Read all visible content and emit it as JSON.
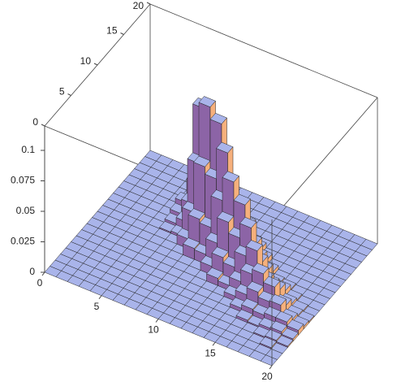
{
  "chart_data": {
    "type": "bar3d",
    "xlim": [
      0,
      20
    ],
    "ylim": [
      0,
      20
    ],
    "zlim": [
      0,
      0.12
    ],
    "xticks": [
      0,
      5,
      10,
      15,
      20
    ],
    "yticks": [
      0,
      5,
      10,
      15,
      20
    ],
    "zticks": [
      0,
      0.025,
      0.05,
      0.075,
      0.1
    ],
    "colors": {
      "top": "#a9b4ea",
      "side_y": "#8c64a6",
      "side_x": "#f6b07c"
    },
    "z": [
      [
        0,
        0,
        0,
        0,
        0,
        0,
        0,
        0,
        0,
        0,
        0,
        0,
        0,
        0,
        0,
        0,
        0,
        0,
        0,
        0
      ],
      [
        0,
        0,
        0,
        0,
        0,
        0,
        0,
        0,
        0,
        0,
        0,
        0,
        0,
        0,
        0,
        0,
        0,
        0,
        0,
        0
      ],
      [
        0,
        0,
        0,
        0,
        0,
        0,
        0,
        0,
        0,
        0,
        0,
        0,
        0,
        0,
        0,
        0,
        0,
        0,
        0,
        0
      ],
      [
        0,
        0,
        0,
        0,
        0,
        0,
        0,
        0,
        0,
        0,
        0,
        0,
        0,
        0,
        0,
        0,
        0,
        0,
        0,
        0
      ],
      [
        0,
        0,
        0,
        0,
        0,
        0,
        0,
        0,
        0,
        0,
        0,
        0,
        0,
        0,
        0,
        0,
        0,
        0,
        0,
        0
      ],
      [
        0,
        0,
        0,
        0,
        0,
        0,
        0,
        0,
        0,
        0,
        0,
        0.001,
        0.003,
        0.006,
        0.01,
        0.006,
        0.003,
        0.001,
        0,
        0
      ],
      [
        0,
        0,
        0,
        0,
        0,
        0,
        0,
        0,
        0,
        0,
        0,
        0.002,
        0.008,
        0.018,
        0.03,
        0.018,
        0.008,
        0.002,
        0,
        0
      ],
      [
        0,
        0,
        0,
        0,
        0,
        0,
        0,
        0,
        0,
        0,
        0.008,
        0.025,
        0.06,
        0.1,
        0.06,
        0.025,
        0.008,
        0,
        0,
        0
      ],
      [
        0,
        0,
        0,
        0,
        0,
        0,
        0,
        0,
        0,
        0.009,
        0.028,
        0.066,
        0.11,
        0.066,
        0.028,
        0.009,
        0,
        0,
        0,
        0
      ],
      [
        0,
        0,
        0,
        0,
        0,
        0,
        0,
        0,
        0,
        0.008,
        0.025,
        0.06,
        0.1,
        0.06,
        0.025,
        0.008,
        0,
        0,
        0,
        0
      ],
      [
        0,
        0,
        0,
        0,
        0,
        0,
        0,
        0,
        0.007,
        0.021,
        0.051,
        0.085,
        0.051,
        0.021,
        0.007,
        0,
        0,
        0,
        0,
        0
      ],
      [
        0,
        0,
        0,
        0,
        0,
        0,
        0,
        0.006,
        0.018,
        0.042,
        0.07,
        0.042,
        0.018,
        0.006,
        0,
        0,
        0,
        0,
        0,
        0
      ],
      [
        0,
        0,
        0,
        0,
        0,
        0,
        0,
        0.004,
        0.014,
        0.033,
        0.055,
        0.033,
        0.014,
        0.004,
        0,
        0,
        0,
        0,
        0,
        0
      ],
      [
        0,
        0,
        0,
        0,
        0,
        0,
        0.004,
        0.011,
        0.027,
        0.045,
        0.027,
        0.011,
        0.004,
        0,
        0,
        0,
        0,
        0,
        0,
        0
      ],
      [
        0,
        0,
        0,
        0,
        0,
        0.003,
        0.009,
        0.021,
        0.035,
        0.021,
        0.009,
        0.003,
        0,
        0,
        0,
        0,
        0,
        0,
        0,
        0
      ],
      [
        0,
        0,
        0,
        0,
        0.002,
        0.006,
        0.015,
        0.025,
        0.015,
        0.006,
        0.002,
        0,
        0,
        0,
        0,
        0,
        0,
        0,
        0,
        0
      ],
      [
        0,
        0,
        0,
        0,
        0.001,
        0.005,
        0.011,
        0.018,
        0.011,
        0.005,
        0.001,
        0,
        0,
        0,
        0,
        0,
        0,
        0,
        0,
        0
      ],
      [
        0,
        0,
        0,
        0.001,
        0.003,
        0.007,
        0.012,
        0.007,
        0.003,
        0.001,
        0,
        0,
        0,
        0,
        0,
        0,
        0,
        0,
        0,
        0
      ],
      [
        0,
        0,
        0.001,
        0.002,
        0.004,
        0.007,
        0.004,
        0.002,
        0.001,
        0,
        0,
        0,
        0,
        0,
        0,
        0,
        0,
        0,
        0,
        0
      ],
      [
        0,
        0,
        0,
        0.001,
        0.002,
        0.004,
        0.002,
        0.001,
        0,
        0,
        0,
        0,
        0,
        0,
        0,
        0,
        0,
        0,
        0,
        0
      ]
    ]
  }
}
